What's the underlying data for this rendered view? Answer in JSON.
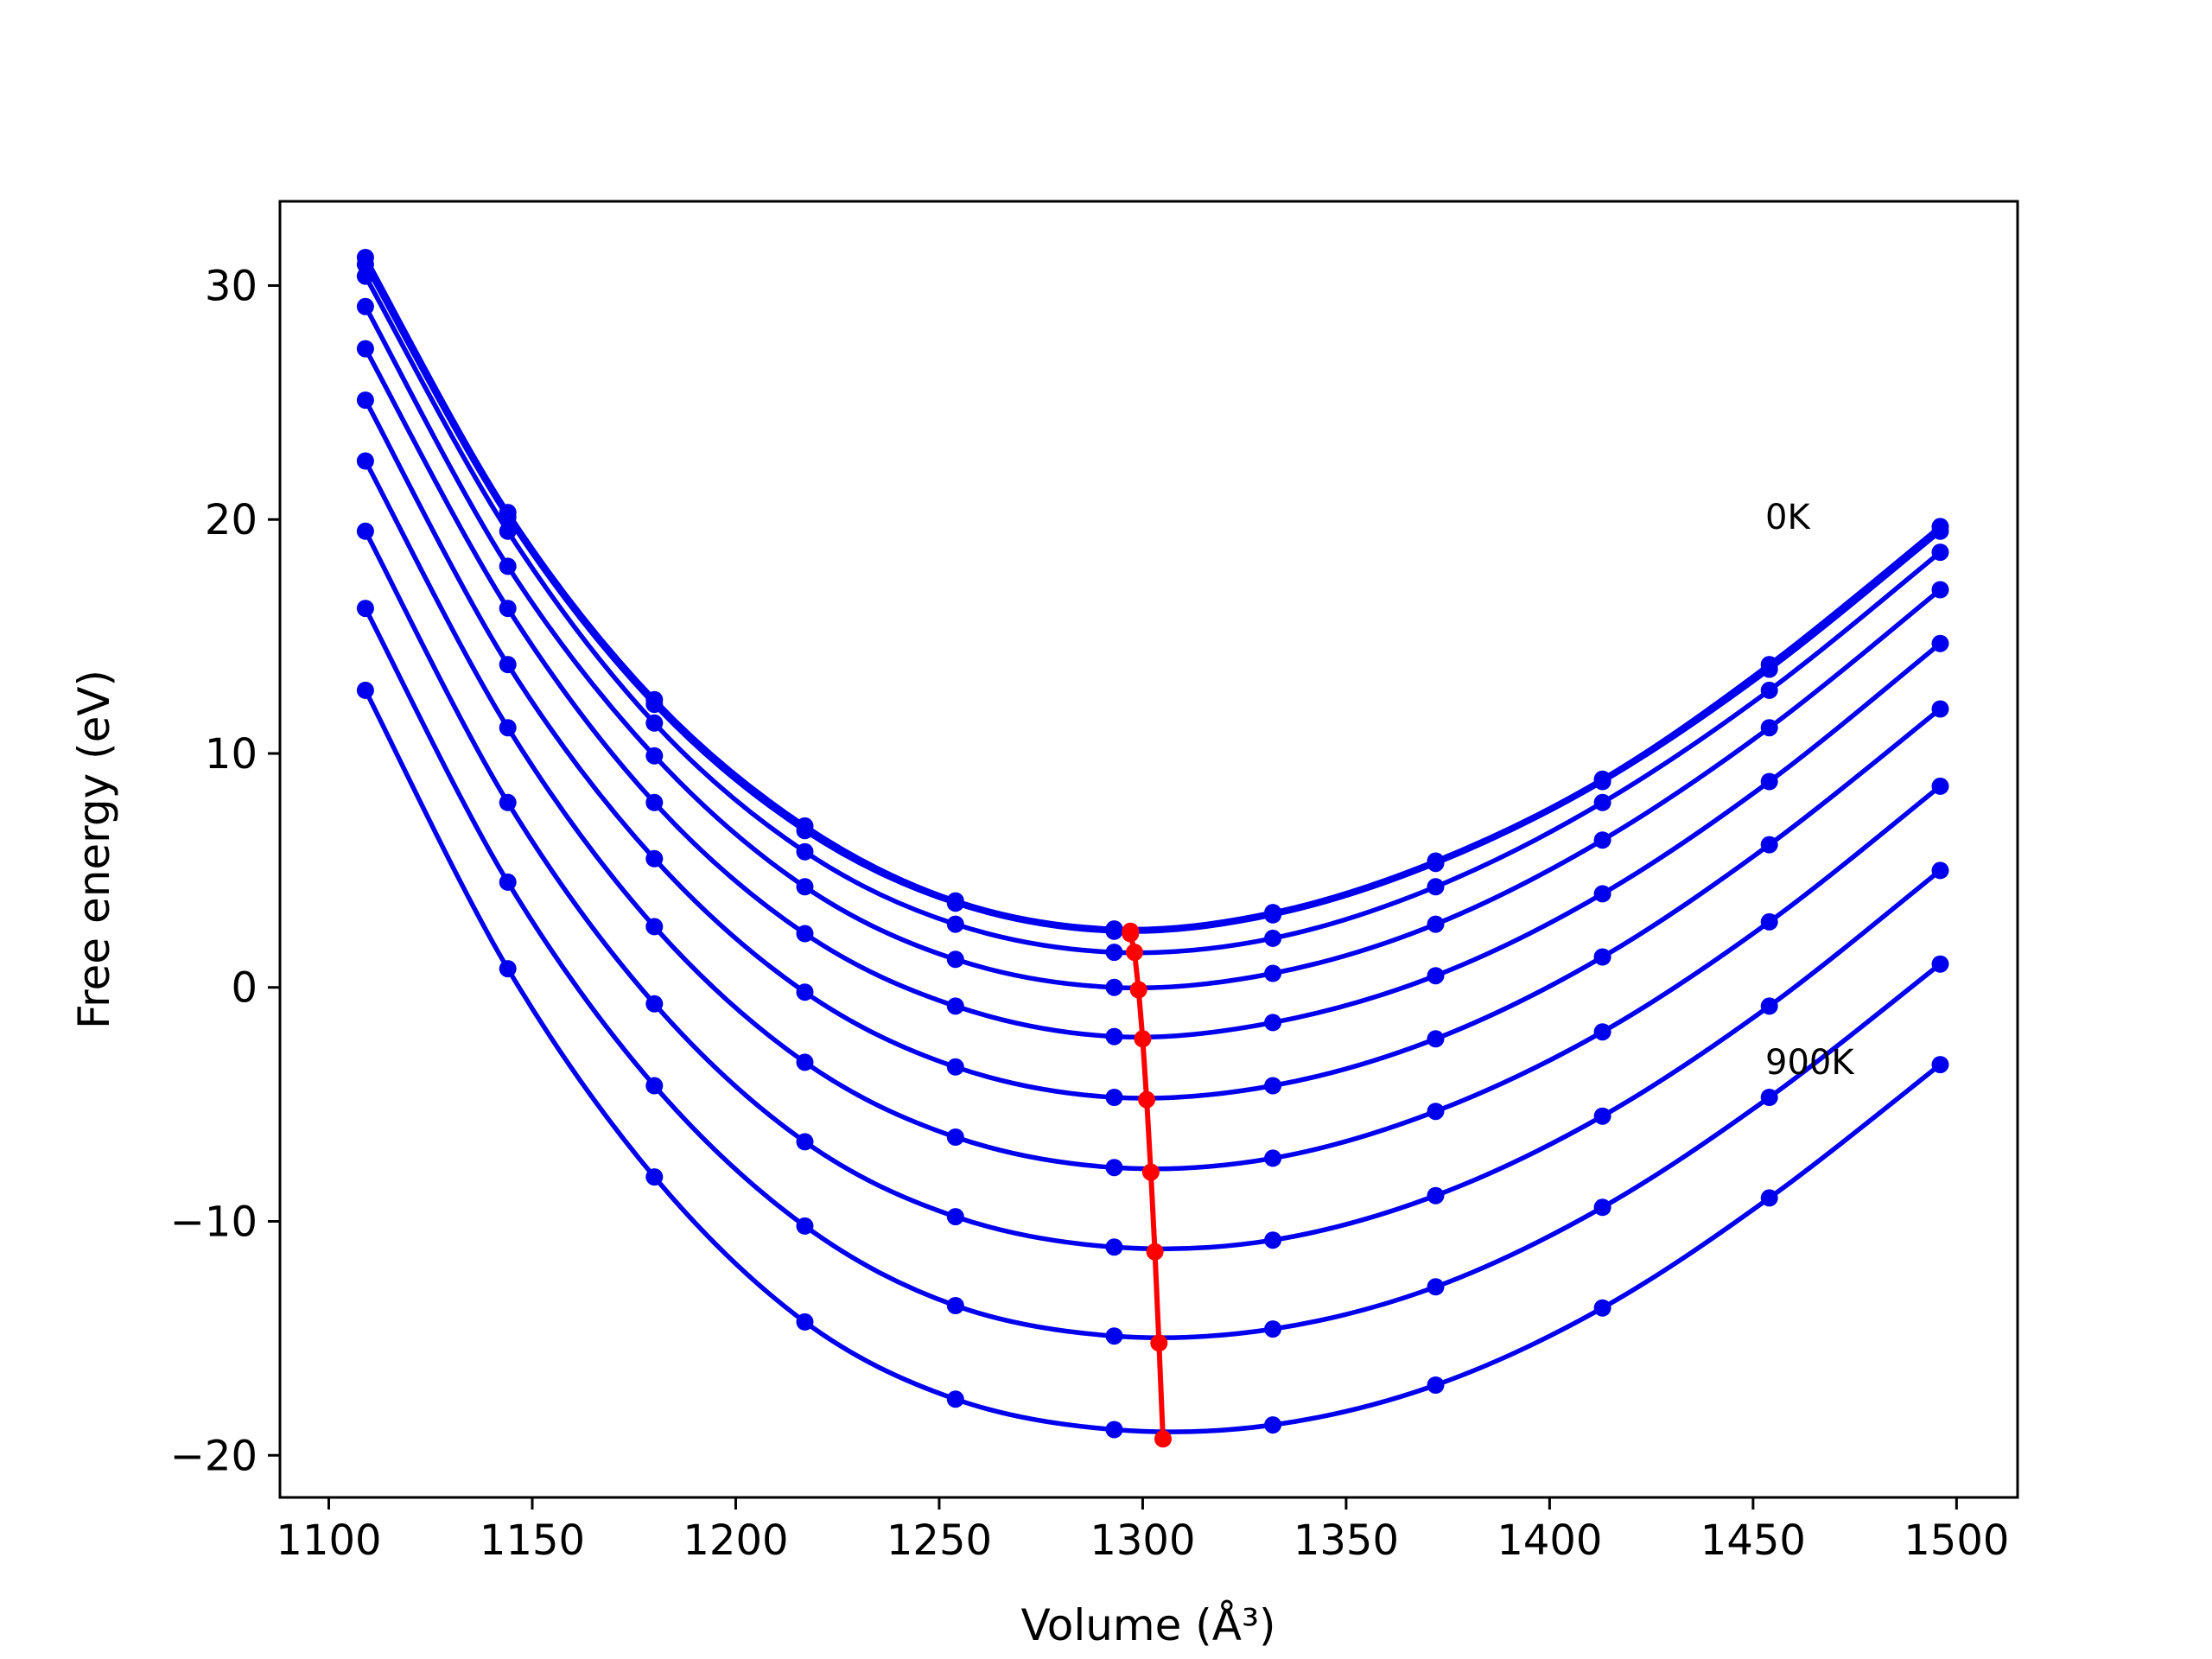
{
  "chart_data": {
    "type": "line",
    "title": "",
    "xlabel": "Volume (Å³)",
    "ylabel": "Free energy (eV)",
    "xlim": [
      1088,
      1515
    ],
    "ylim": [
      -21.8,
      33.6
    ],
    "xticks": [
      1100,
      1150,
      1200,
      1250,
      1300,
      1350,
      1400,
      1450,
      1500
    ],
    "yticks": [
      -20,
      -10,
      0,
      10,
      20,
      30
    ],
    "grid": false,
    "legend": "none",
    "colors": {
      "curves": "#0000ee",
      "minima": "#ff0000"
    },
    "annotations": [
      {
        "text": "0K",
        "x": 1453,
        "y": 19.6
      },
      {
        "text": "900K",
        "x": 1453,
        "y": -3.7
      }
    ],
    "x": [
      1109,
      1144,
      1180,
      1217,
      1254,
      1293,
      1332,
      1372,
      1413,
      1454,
      1496
    ],
    "series": [
      {
        "values": [
          31.2,
          20.3,
          12.3,
          6.9,
          3.7,
          2.5,
          3.2,
          5.4,
          8.9,
          13.8,
          19.7
        ]
      },
      {
        "values": [
          30.9,
          20.1,
          12.1,
          6.7,
          3.6,
          2.4,
          3.1,
          5.3,
          8.8,
          13.6,
          19.5
        ]
      },
      {
        "values": [
          30.4,
          19.5,
          11.3,
          5.8,
          2.7,
          1.5,
          2.1,
          4.3,
          7.9,
          12.7,
          18.6
        ]
      },
      {
        "values": [
          29.1,
          18.0,
          9.9,
          4.3,
          1.2,
          0.0,
          0.6,
          2.7,
          6.3,
          11.1,
          17.0
        ]
      },
      {
        "values": [
          27.3,
          16.2,
          7.9,
          2.3,
          -0.8,
          -2.1,
          -1.5,
          0.5,
          4.0,
          8.8,
          14.7
        ]
      },
      {
        "values": [
          25.1,
          13.8,
          5.5,
          -0.2,
          -3.4,
          -4.7,
          -4.2,
          -2.2,
          1.3,
          6.1,
          11.9
        ]
      },
      {
        "values": [
          22.5,
          11.1,
          2.6,
          -3.2,
          -6.4,
          -7.7,
          -7.3,
          -5.3,
          -1.9,
          2.8,
          8.6
        ]
      },
      {
        "values": [
          19.5,
          7.9,
          -0.7,
          -6.6,
          -9.8,
          -11.1,
          -10.8,
          -8.9,
          -5.5,
          -0.8,
          5.0
        ]
      },
      {
        "values": [
          16.2,
          4.5,
          -4.2,
          -10.2,
          -13.6,
          -14.9,
          -14.6,
          -12.8,
          -9.4,
          -4.7,
          1.0
        ]
      },
      {
        "values": [
          12.7,
          0.8,
          -8.1,
          -14.3,
          -17.6,
          -18.9,
          -18.7,
          -17.0,
          -13.7,
          -9.0,
          -3.3
        ]
      }
    ],
    "minima": {
      "x": [
        1297,
        1297,
        1298,
        1299,
        1300,
        1301,
        1302,
        1303,
        1304,
        1305
      ],
      "y": [
        2.4,
        2.3,
        1.5,
        -0.1,
        -2.2,
        -4.8,
        -7.9,
        -11.3,
        -15.2,
        -19.3
      ]
    }
  }
}
